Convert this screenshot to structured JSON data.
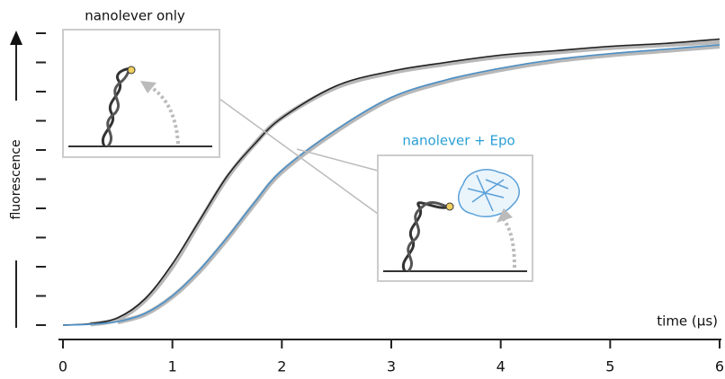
{
  "chart_data": {
    "type": "line",
    "annotations": [
      "nanolever only",
      "nanolever + Epo"
    ],
    "xlabel": "time (µs)",
    "ylabel": "fluorescence",
    "x": [
      0,
      0.25,
      0.5,
      0.75,
      1,
      1.25,
      1.5,
      1.75,
      2,
      2.5,
      3,
      3.5,
      4,
      4.5,
      5,
      5.5,
      6
    ],
    "series": [
      {
        "color": "#b8b8b8",
        "values": [
          null,
          0.003,
          0.02,
          0.085,
          0.2,
          0.355,
          0.505,
          0.62,
          0.71,
          0.815,
          0.865,
          0.895,
          0.92,
          0.935,
          0.95,
          0.96,
          0.97
        ]
      },
      {
        "color": "#b8b8b8",
        "values": [
          null,
          null,
          0.01,
          0.037,
          0.097,
          0.185,
          0.295,
          0.415,
          0.525,
          0.665,
          0.775,
          0.835,
          0.875,
          0.905,
          0.925,
          0.94,
          0.955
        ]
      },
      {
        "color": "#222222",
        "values": [
          0,
          0.005,
          0.025,
          0.09,
          0.21,
          0.36,
          0.51,
          0.62,
          0.71,
          0.82,
          0.87,
          0.9,
          0.925,
          0.94,
          0.955,
          0.965,
          0.98
        ]
      },
      {
        "color": "#4a90c8",
        "values": [
          0,
          0.003,
          0.012,
          0.04,
          0.1,
          0.19,
          0.3,
          0.42,
          0.53,
          0.67,
          0.78,
          0.84,
          0.88,
          0.91,
          0.93,
          0.945,
          0.96
        ]
      }
    ],
    "xlim": [
      0,
      6
    ],
    "xticks": [
      0,
      1,
      2,
      3,
      4,
      5,
      6
    ],
    "ylim": [
      0,
      1
    ],
    "yticks": [
      0,
      0.1,
      0.2,
      0.3,
      0.4,
      0.5,
      0.6,
      0.7,
      0.8,
      0.9,
      1
    ],
    "annotation_color": "#2a9fd6"
  }
}
